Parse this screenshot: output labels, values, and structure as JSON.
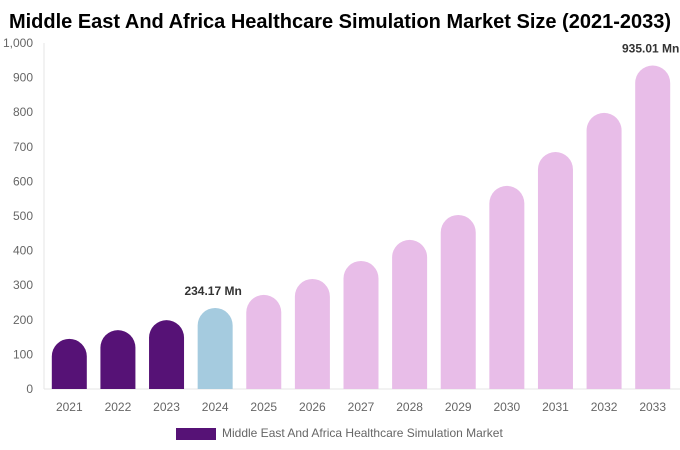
{
  "chart_data": {
    "type": "bar",
    "title": "Middle East And Africa Healthcare Simulation Market Size (2021-2033)",
    "xlabel": "",
    "ylabel": "",
    "ylim": [
      0,
      1000
    ],
    "yticks": [
      "0",
      "100",
      "200",
      "300",
      "400",
      "500",
      "600",
      "700",
      "800",
      "900",
      "1,000"
    ],
    "categories": [
      "2021",
      "2022",
      "2023",
      "2024",
      "2025",
      "2026",
      "2027",
      "2028",
      "2029",
      "2030",
      "2031",
      "2032",
      "2033"
    ],
    "series": [
      {
        "name": "Middle East And Africa Healthcare Simulation Market",
        "values": [
          145,
          170,
          199,
          234.17,
          272,
          318,
          370,
          431,
          503,
          587,
          685,
          798,
          935.01
        ]
      }
    ],
    "data_labels": [
      {
        "category": "2024",
        "text": "234.17 Mn"
      },
      {
        "category": "2033",
        "text": "935.01 Mn"
      }
    ],
    "colors": {
      "historical": "#561276",
      "base_year": "#a5cbdf",
      "forecast": "#e8bde8"
    },
    "grid": false,
    "legend_position": "bottom"
  }
}
